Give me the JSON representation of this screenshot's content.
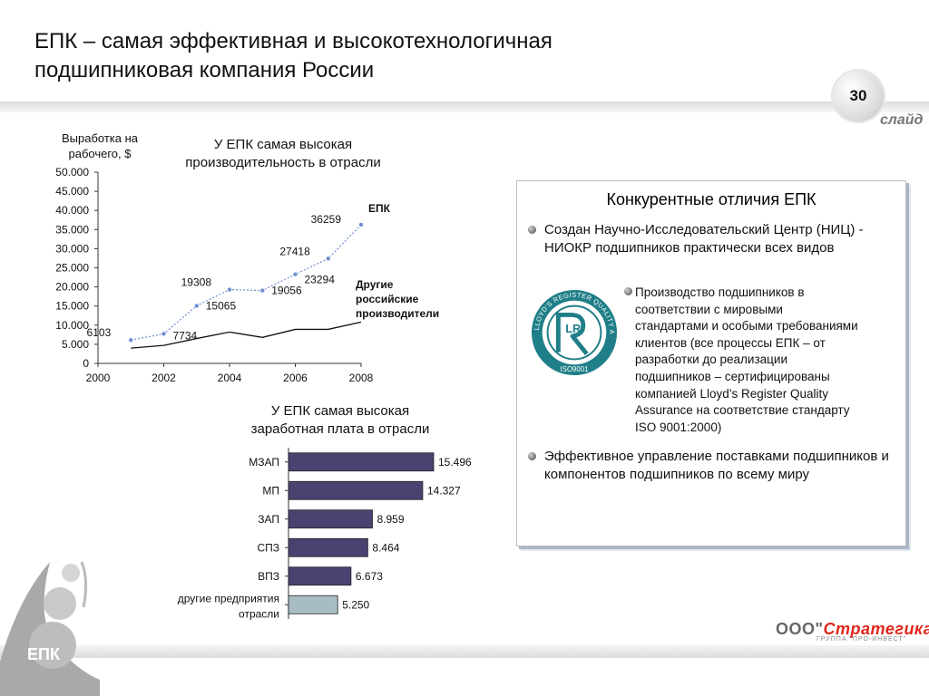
{
  "header": {
    "title_line1": "ЕПК – самая эффективная и высокотехнологичная",
    "title_line2": "подшипниковая компания России",
    "slide_number": "30",
    "slide_word": "слайд"
  },
  "colors": {
    "epk_line": "#6f8fcf",
    "other_line": "#111111",
    "bar_dark": "#4a4270",
    "bar_light": "#a8bcc4"
  },
  "chart_data": [
    {
      "type": "line",
      "title": "У ЕПК самая высокая производительность в отрасли",
      "ylabel": "Выработка на рабочего, $",
      "x_ticks": [
        "2000",
        "2002",
        "2004",
        "2006",
        "2008"
      ],
      "y_ticks": [
        "0",
        "5.000",
        "10.000",
        "15.000",
        "20.000",
        "25.000",
        "30.000",
        "35.000",
        "40.000",
        "45.000",
        "50.000"
      ],
      "xlim": [
        2000,
        2008
      ],
      "ylim": [
        0,
        50000
      ],
      "grid": false,
      "series": [
        {
          "name": "ЕПК",
          "x": [
            2001,
            2002,
            2003,
            2004,
            2005,
            2006,
            2007,
            2008
          ],
          "values": [
            6103,
            7734,
            15065,
            19308,
            19056,
            23294,
            27418,
            36259
          ],
          "labels": [
            "6103",
            "7734",
            "15065",
            "19308",
            "19056",
            "23294",
            "27418",
            "36259"
          ]
        },
        {
          "name": "Другие российские производители",
          "x": [
            2001,
            2002,
            2003,
            2004,
            2005,
            2006,
            2007,
            2008
          ],
          "values": [
            4000,
            4700,
            6500,
            8200,
            6800,
            8900,
            8900,
            10800
          ]
        }
      ],
      "legend_epk": "ЕПК",
      "legend_other_1": "Другие",
      "legend_other_2": "российские",
      "legend_other_3": "производители"
    },
    {
      "type": "bar",
      "orientation": "horizontal",
      "title": "У ЕПК самая высокая заработная плата в отрасли",
      "categories": [
        "МЗАП",
        "МП",
        "ЗАП",
        "СПЗ",
        "ВПЗ",
        "другие предприятия отрасли"
      ],
      "values": [
        15.496,
        14.327,
        8.959,
        8.464,
        6.673,
        5.25
      ],
      "value_labels": [
        "15.496",
        "14.327",
        "8.959",
        "8.464",
        "6.673",
        "5.250"
      ]
    }
  ],
  "chart1_title_line1": "У ЕПК самая высокая",
  "chart1_title_line2": "производительность в отрасли",
  "chart1_ylabel_line1": "Выработка на",
  "chart1_ylabel_line2": "рабочего, $",
  "chart2_title_line1": "У ЕПК самая высокая",
  "chart2_title_line2": "заработная плата в отрасли",
  "chart2_last_cat_line1": "другие предприятия",
  "chart2_last_cat_line2": "отрасли",
  "panel": {
    "title": "Конкурентные отличия ЕПК",
    "bullet1": "Создан Научно-Исследовательский Центр (НИЦ) - НИОКР подшипников практически всех видов",
    "bullet2_lines": [
      "Производство подшипников в",
      "соответствии с мировыми",
      "стандартами и особыми требованиями",
      "клиентов (все процессы ЕПК – от",
      "разработки до реализации",
      "подшипников – сертифицированы",
      "компанией Lloyd’s Register Quality",
      "Assurance на соответствие стандарту",
      "ISO 9001:2000)"
    ],
    "bullet3": "Эффективное управление поставками подшипников и компонентов подшипников по всему миру",
    "seal_text": "LLOYD'S REGISTER QUALITY ASSURANCE",
    "seal_iso": "ISO9001",
    "seal_letters": "LR"
  },
  "footer": {
    "brand_prefix": "ООО\"",
    "brand_name": "Стратегика",
    "brand_suffix": "\"",
    "brand_sub": "ГРУППА \"ПРО-ИНВЕСТ\"",
    "logo_text": "ЕПК"
  }
}
